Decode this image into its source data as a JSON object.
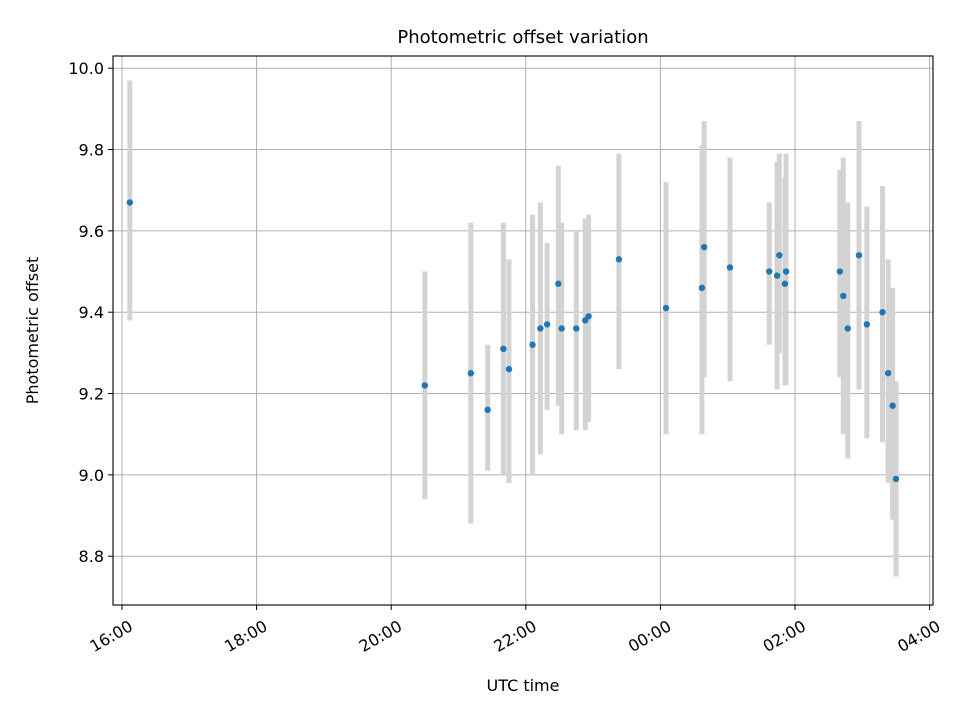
{
  "chart_data": {
    "type": "scatter",
    "title": "Photometric offset variation",
    "xlabel": "UTC time",
    "ylabel": "Photometric offset",
    "x_ticks": [
      "16:00",
      "18:00",
      "20:00",
      "22:00",
      "00:00",
      "02:00",
      "04:00"
    ],
    "y_ticks": [
      "8.8",
      "9.0",
      "9.2",
      "9.4",
      "9.6",
      "9.8",
      "10.0"
    ],
    "xlim": [
      "15:52",
      "04:03"
    ],
    "ylim": [
      8.68,
      10.03
    ],
    "grid": true,
    "colors": {
      "point": "#1f77b4",
      "errorbar": "#d3d3d3",
      "grid": "#b0b0b0"
    },
    "points": [
      {
        "x": "16:07",
        "y": 9.67,
        "lo": 9.38,
        "hi": 9.97
      },
      {
        "x": "20:30",
        "y": 9.22,
        "lo": 8.94,
        "hi": 9.5
      },
      {
        "x": "21:11",
        "y": 9.25,
        "lo": 8.88,
        "hi": 9.62
      },
      {
        "x": "21:26",
        "y": 9.16,
        "lo": 9.01,
        "hi": 9.32
      },
      {
        "x": "21:40",
        "y": 9.31,
        "lo": 9.0,
        "hi": 9.62
      },
      {
        "x": "21:45",
        "y": 9.26,
        "lo": 8.98,
        "hi": 9.53
      },
      {
        "x": "22:06",
        "y": 9.32,
        "lo": 9.0,
        "hi": 9.64
      },
      {
        "x": "22:13",
        "y": 9.36,
        "lo": 9.05,
        "hi": 9.67
      },
      {
        "x": "22:19",
        "y": 9.37,
        "lo": 9.16,
        "hi": 9.57
      },
      {
        "x": "22:29",
        "y": 9.47,
        "lo": 9.17,
        "hi": 9.76
      },
      {
        "x": "22:32",
        "y": 9.36,
        "lo": 9.1,
        "hi": 9.62
      },
      {
        "x": "22:45",
        "y": 9.36,
        "lo": 9.11,
        "hi": 9.6
      },
      {
        "x": "22:53",
        "y": 9.38,
        "lo": 9.11,
        "hi": 9.63
      },
      {
        "x": "22:56",
        "y": 9.39,
        "lo": 9.13,
        "hi": 9.64
      },
      {
        "x": "23:23",
        "y": 9.53,
        "lo": 9.26,
        "hi": 9.79
      },
      {
        "x": "00:05",
        "y": 9.41,
        "lo": 9.1,
        "hi": 9.72
      },
      {
        "x": "00:37",
        "y": 9.46,
        "lo": 9.1,
        "hi": 9.81
      },
      {
        "x": "00:39",
        "y": 9.56,
        "lo": 9.24,
        "hi": 9.87
      },
      {
        "x": "01:02",
        "y": 9.51,
        "lo": 9.23,
        "hi": 9.78
      },
      {
        "x": "01:37",
        "y": 9.5,
        "lo": 9.32,
        "hi": 9.67
      },
      {
        "x": "01:44",
        "y": 9.49,
        "lo": 9.21,
        "hi": 9.77
      },
      {
        "x": "01:46",
        "y": 9.54,
        "lo": 9.3,
        "hi": 9.79
      },
      {
        "x": "01:51",
        "y": 9.47,
        "lo": 9.22,
        "hi": 9.73
      },
      {
        "x": "01:52",
        "y": 9.5,
        "lo": 9.22,
        "hi": 9.79
      },
      {
        "x": "02:40",
        "y": 9.5,
        "lo": 9.24,
        "hi": 9.75
      },
      {
        "x": "02:43",
        "y": 9.44,
        "lo": 9.1,
        "hi": 9.78
      },
      {
        "x": "02:47",
        "y": 9.36,
        "lo": 9.04,
        "hi": 9.67
      },
      {
        "x": "02:57",
        "y": 9.54,
        "lo": 9.21,
        "hi": 9.87
      },
      {
        "x": "03:04",
        "y": 9.37,
        "lo": 9.09,
        "hi": 9.66
      },
      {
        "x": "03:18",
        "y": 9.4,
        "lo": 9.08,
        "hi": 9.71
      },
      {
        "x": "03:23",
        "y": 9.25,
        "lo": 8.98,
        "hi": 9.53
      },
      {
        "x": "03:27",
        "y": 9.17,
        "lo": 8.89,
        "hi": 9.46
      },
      {
        "x": "03:30",
        "y": 8.99,
        "lo": 8.75,
        "hi": 9.23
      }
    ]
  }
}
